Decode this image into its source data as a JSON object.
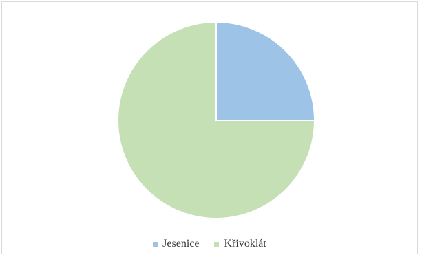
{
  "chart_data": {
    "type": "pie",
    "title": "",
    "series": [
      {
        "name": "Jesenice",
        "value": 25,
        "color": "#9dc3e6"
      },
      {
        "name": "Křivoklát",
        "value": 75,
        "color": "#c5e0b4"
      }
    ],
    "start_angle_deg": 0,
    "direction": "clockwise",
    "legend_position": "bottom",
    "slice_border_color": "#ffffff"
  }
}
